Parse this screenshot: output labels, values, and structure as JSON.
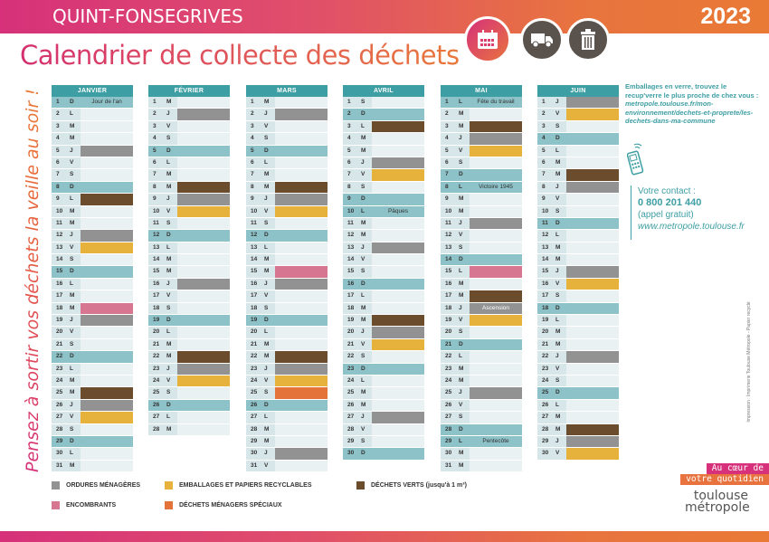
{
  "header": {
    "commune": "QUINT-FONSEGRIVES",
    "year": "2023",
    "title": "Calendrier de collecte des déchets",
    "icons": [
      "calendar-icon",
      "truck-icon",
      "trash-bin-icon"
    ]
  },
  "slogan": "Pensez à sortir vos déchets la veille au soir !",
  "colors": {
    "om": "#929292",
    "emb": "#e6b23b",
    "vert": "#6b4d2e",
    "enc": "#d67690",
    "dms": "#e4733a",
    "header_teal": "#3d9ea3",
    "sunday": "#8dc2c8",
    "brand_pink": "#d6317a",
    "brand_orange": "#e8733f"
  },
  "months": [
    {
      "name": "JANVIER",
      "days": 31,
      "first_dow": 0,
      "events": {
        "5": "om",
        "9": "vert",
        "12": "om",
        "13": "emb",
        "18": "enc",
        "19": "om",
        "25": "vert",
        "26": "om",
        "27": "emb"
      },
      "holidays": {
        "1": "Jour de l'an"
      }
    },
    {
      "name": "FÉVRIER",
      "days": 28,
      "first_dow": 3,
      "events": {
        "2": "om",
        "8": "vert",
        "9": "om",
        "10": "emb",
        "16": "om",
        "22": "vert",
        "23": "om",
        "24": "emb"
      },
      "holidays": {}
    },
    {
      "name": "MARS",
      "days": 31,
      "first_dow": 3,
      "events": {
        "2": "om",
        "8": "vert",
        "9": "om",
        "10": "emb",
        "15": "enc",
        "16": "om",
        "22": "vert",
        "23": "om",
        "24": "emb",
        "25": "dms",
        "30": "om"
      },
      "holidays": {}
    },
    {
      "name": "AVRIL",
      "days": 30,
      "first_dow": 6,
      "events": {
        "3": "vert",
        "6": "om",
        "7": "emb",
        "13": "om",
        "19": "vert",
        "20": "om",
        "21": "emb",
        "27": "om"
      },
      "holidays": {
        "10": "Pâques"
      }
    },
    {
      "name": "MAI",
      "days": 31,
      "first_dow": 1,
      "events": {
        "3": "vert",
        "4": "om",
        "5": "emb",
        "11": "om",
        "15": "enc",
        "17": "vert",
        "18": "om",
        "19": "emb",
        "25": "om"
      },
      "holidays": {
        "1": "Fête du travail",
        "8": "Victoire 1945",
        "18": "Ascension",
        "29": "Pentecôte"
      }
    },
    {
      "name": "JUIN",
      "days": 30,
      "first_dow": 4,
      "events": {
        "1": "om",
        "2": "emb",
        "7": "vert",
        "8": "om",
        "15": "om",
        "16": "emb",
        "22": "om",
        "28": "vert",
        "29": "om",
        "30": "emb"
      },
      "holidays": {}
    }
  ],
  "day_letters": [
    "D",
    "L",
    "M",
    "M",
    "J",
    "V",
    "S"
  ],
  "info": {
    "glass_text": "Emballages en verre, trouvez le recup'verre le plus proche de chez vous :",
    "glass_url": "metropole.toulouse.fr/mon-environnement/dechets-et-proprete/les-dechets-dans-ma-commune",
    "contact_label": "Votre contact :",
    "contact_phone": "0 800 201 440",
    "contact_note": "(appel gratuit)",
    "contact_web": "www.metropole.toulouse.fr"
  },
  "imprint": "Impression : Imprimerie Toulouse Métropole - Papier recyclé",
  "legend": [
    {
      "key": "om",
      "label": "ORDURES MÉNAGÈRES"
    },
    {
      "key": "emb",
      "label": "EMBALLAGES ET PAPIERS RECYCLABLES"
    },
    {
      "key": "vert",
      "label": "DÉCHETS VERTS (jusqu'à 1 m³)"
    },
    {
      "key": "enc",
      "label": "ENCOMBRANTS"
    },
    {
      "key": "dms",
      "label": "DÉCHETS MÉNAGERS SPÉCIAUX"
    }
  ],
  "tagline": {
    "line1": "Au cœur de",
    "line2": "votre quotidien"
  },
  "brand": {
    "line1": "toulouse",
    "line2": "métropole"
  }
}
